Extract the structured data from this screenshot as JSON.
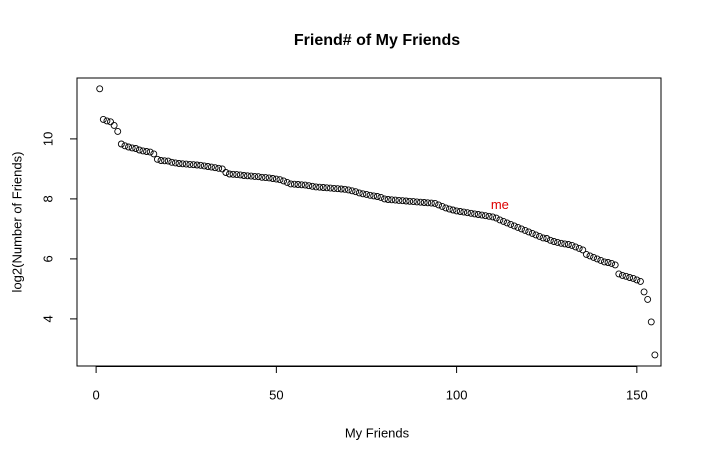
{
  "chart_data": {
    "type": "scatter",
    "title": "Friend# of My Friends",
    "x_label": "My Friends",
    "y_label": "log2(Number of Friends)",
    "x": [
      1,
      2,
      3,
      4,
      5,
      6,
      7,
      8,
      9,
      10,
      11,
      12,
      13,
      14,
      15,
      16,
      17,
      18,
      19,
      20,
      21,
      22,
      23,
      24,
      25,
      26,
      27,
      28,
      29,
      30,
      31,
      32,
      33,
      34,
      35,
      36,
      37,
      38,
      39,
      40,
      41,
      42,
      43,
      44,
      45,
      46,
      47,
      48,
      49,
      50,
      51,
      52,
      53,
      54,
      55,
      56,
      57,
      58,
      59,
      60,
      61,
      62,
      63,
      64,
      65,
      66,
      67,
      68,
      69,
      70,
      71,
      72,
      73,
      74,
      75,
      76,
      77,
      78,
      79,
      80,
      81,
      82,
      83,
      84,
      85,
      86,
      87,
      88,
      89,
      90,
      91,
      92,
      93,
      94,
      95,
      96,
      97,
      98,
      99,
      100,
      101,
      102,
      103,
      104,
      105,
      106,
      107,
      108,
      109,
      110,
      111,
      112,
      113,
      114,
      115,
      116,
      117,
      118,
      119,
      120,
      121,
      122,
      123,
      124,
      125,
      126,
      127,
      128,
      129,
      130,
      131,
      132,
      133,
      134,
      135,
      136,
      137,
      138,
      139,
      140,
      141,
      142,
      143,
      144,
      145,
      146,
      147,
      148,
      149,
      150,
      151,
      152,
      153,
      154,
      155
    ],
    "values": [
      11.67,
      10.65,
      10.6,
      10.57,
      10.45,
      10.25,
      9.83,
      9.77,
      9.73,
      9.7,
      9.68,
      9.63,
      9.6,
      9.58,
      9.56,
      9.5,
      9.32,
      9.28,
      9.27,
      9.26,
      9.22,
      9.2,
      9.18,
      9.17,
      9.16,
      9.15,
      9.14,
      9.13,
      9.12,
      9.1,
      9.08,
      9.06,
      9.04,
      9.02,
      9.0,
      8.88,
      8.83,
      8.82,
      8.81,
      8.8,
      8.78,
      8.77,
      8.76,
      8.75,
      8.74,
      8.72,
      8.71,
      8.7,
      8.68,
      8.66,
      8.64,
      8.6,
      8.55,
      8.5,
      8.49,
      8.48,
      8.47,
      8.46,
      8.44,
      8.42,
      8.4,
      8.39,
      8.38,
      8.37,
      8.36,
      8.35,
      8.34,
      8.33,
      8.32,
      8.3,
      8.27,
      8.24,
      8.2,
      8.17,
      8.15,
      8.12,
      8.1,
      8.08,
      8.05,
      8.0,
      7.98,
      7.97,
      7.96,
      7.95,
      7.94,
      7.93,
      7.92,
      7.91,
      7.9,
      7.89,
      7.88,
      7.87,
      7.86,
      7.85,
      7.8,
      7.75,
      7.7,
      7.66,
      7.63,
      7.6,
      7.58,
      7.56,
      7.54,
      7.52,
      7.5,
      7.48,
      7.46,
      7.44,
      7.42,
      7.4,
      7.36,
      7.3,
      7.25,
      7.2,
      7.15,
      7.1,
      7.05,
      7.0,
      6.95,
      6.9,
      6.85,
      6.8,
      6.75,
      6.7,
      6.68,
      6.62,
      6.58,
      6.55,
      6.52,
      6.5,
      6.48,
      6.45,
      6.4,
      6.35,
      6.3,
      6.15,
      6.1,
      6.05,
      6.0,
      5.95,
      5.9,
      5.88,
      5.85,
      5.8,
      5.5,
      5.45,
      5.42,
      5.38,
      5.35,
      5.3,
      5.25,
      4.9,
      4.65,
      3.9,
      2.8
    ],
    "color": "#000000",
    "annotations": [
      {
        "text": "me",
        "x": 112,
        "y": 7.77,
        "color": "#dd0000"
      }
    ],
    "xlim": [
      -5.3,
      156.7
    ],
    "ylim": [
      2.43,
      12.03
    ],
    "xticks": [
      0,
      50,
      100,
      150
    ],
    "yticks": [
      4,
      6,
      8,
      10
    ]
  }
}
